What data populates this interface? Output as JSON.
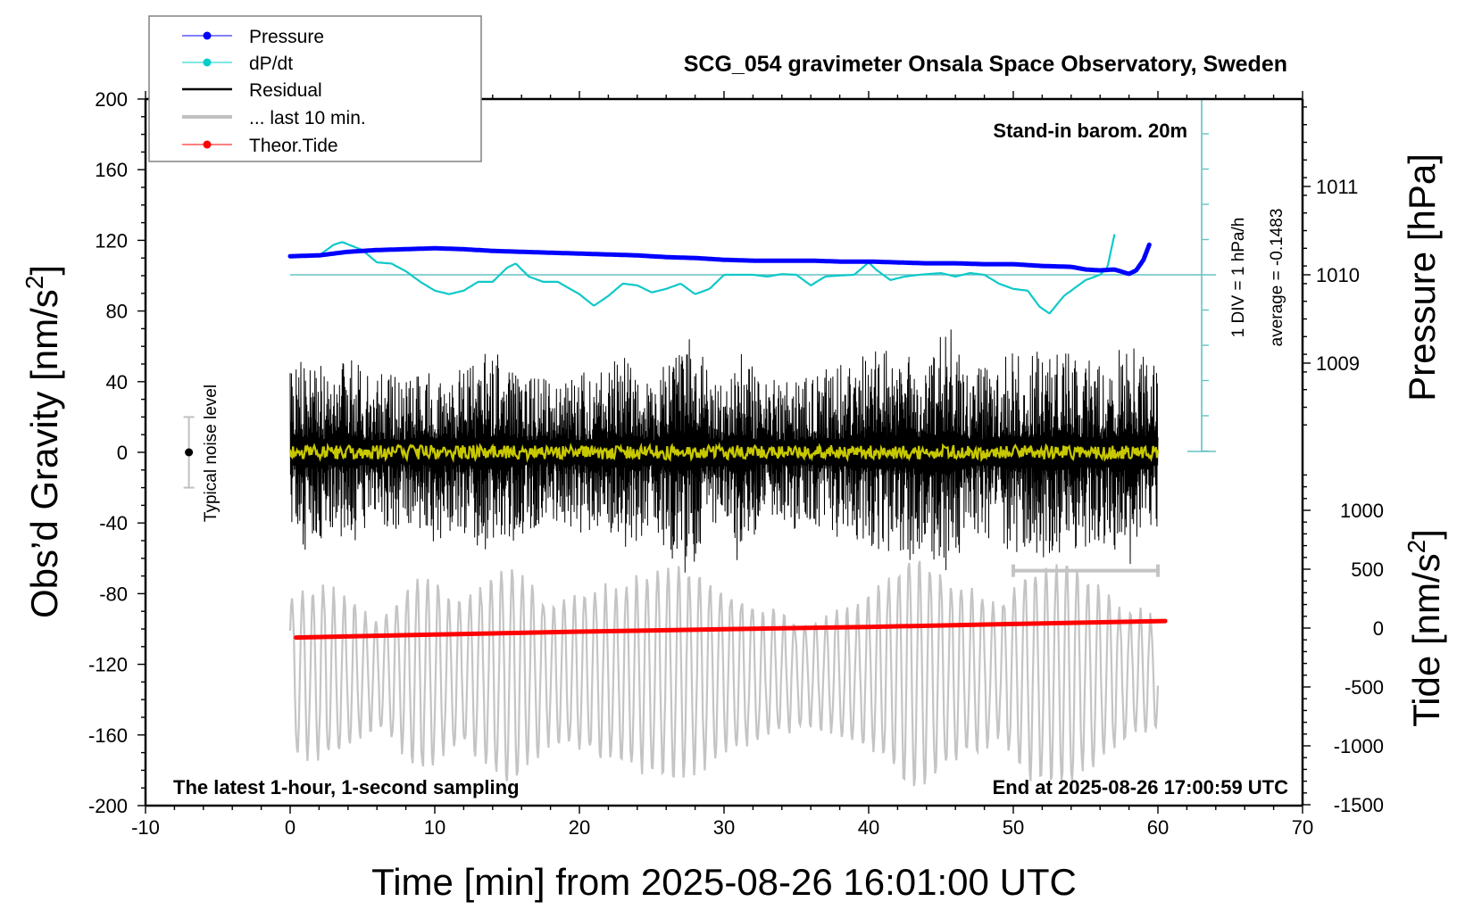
{
  "chart_data": {
    "type": "line",
    "title": "SCG_054 gravimeter Onsala Space Observatory, Sweden",
    "xlabel": "Time [min] from 2025-08-26 16:01:00 UTC",
    "ylabel_left": "Obs’d Gravity [nm/s",
    "ylabel_left_sup": "2",
    "ylabel_left_end": "]",
    "ylabel_right_top": "Pressure [hPa]",
    "ylabel_right_bottom": "Tide [nm/s",
    "ylabel_right_bottom_sup": "2",
    "ylabel_right_bottom_end": "]",
    "xlim": [
      -10,
      70
    ],
    "ylim": [
      -200,
      200
    ],
    "pressure_lim": [
      1008,
      1012
    ],
    "tide_lim": [
      -1500,
      1500
    ],
    "x_ticks": [
      "-10",
      "0",
      "10",
      "20",
      "30",
      "40",
      "50",
      "60",
      "70"
    ],
    "y_ticks": [
      "200",
      "160",
      "120",
      "80",
      "40",
      "0",
      "-40",
      "-80",
      "-120",
      "-160",
      "-200"
    ],
    "pressure_ticks": [
      "1011",
      "1010",
      "1009"
    ],
    "tide_ticks": [
      "1000",
      "500",
      "0",
      "-500",
      "-1000",
      "-1500"
    ],
    "annotations": {
      "barometer": "Stand-in barom. 20m",
      "div": "1 DIV = 1 hPa/h",
      "average": "average = -0.1483",
      "noise": "Typical noise level",
      "latest": "The latest 1-hour, 1-second sampling",
      "end": "End at 2025-08-26 17:00:59 UTC"
    },
    "legend": {
      "position": "top-left",
      "entries": [
        {
          "label": "Pressure",
          "color": "#0000ff",
          "marker": true
        },
        {
          "label": "dP/dt",
          "color": "#00cccc",
          "marker": true
        },
        {
          "label": "Residual",
          "color": "#000000",
          "marker": false
        },
        {
          "label": "... last 10 min.",
          "color": "#c0c0c0",
          "marker": false
        },
        {
          "label": "Theor.Tide",
          "color": "#ff0000",
          "marker": true
        }
      ]
    },
    "colors": {
      "pressure": "#0000ff",
      "dpdt": "#10c8c8",
      "dpdt_axis": "#66c2c2",
      "residual": "#000000",
      "residual_smooth": "#c8c800",
      "last10": "#c4c4c4",
      "tide": "#ff0000",
      "noise_bar": "#c0c0c0"
    },
    "series": [
      {
        "name": "Pressure",
        "unit": "hPa",
        "x": [
          0,
          2,
          4,
          6,
          8,
          10,
          12,
          14,
          16,
          18,
          20,
          22,
          24,
          26,
          28,
          30,
          32,
          34,
          36,
          38,
          40,
          42,
          44,
          46,
          48,
          50,
          52,
          54,
          55,
          56,
          57,
          58,
          58.5,
          59,
          59.4
        ],
        "y": [
          1010.21,
          1010.22,
          1010.26,
          1010.28,
          1010.29,
          1010.3,
          1010.29,
          1010.27,
          1010.26,
          1010.25,
          1010.24,
          1010.23,
          1010.22,
          1010.2,
          1010.19,
          1010.17,
          1010.16,
          1010.16,
          1010.16,
          1010.15,
          1010.15,
          1010.14,
          1010.13,
          1010.13,
          1010.12,
          1010.12,
          1010.1,
          1010.09,
          1010.06,
          1010.05,
          1010.06,
          1010.01,
          1010.05,
          1010.17,
          1010.34
        ]
      },
      {
        "name": "dP/dt",
        "unit": "hPa/h (DIV)",
        "baseline_hPa": 1010,
        "x": [
          2,
          3,
          3.6,
          5,
          6,
          7,
          8,
          9,
          10,
          11,
          12,
          13,
          14,
          15,
          15.6,
          16.5,
          17.5,
          18.5,
          20,
          21,
          22,
          23,
          24,
          25,
          26,
          27,
          28,
          29,
          30,
          31,
          32,
          33,
          34,
          35,
          36,
          37,
          38,
          39,
          40,
          40.5,
          41.5,
          42.5,
          43.5,
          45,
          46,
          47,
          48,
          49,
          50,
          51,
          51.8,
          52.5,
          53.5,
          55,
          56,
          56.5,
          57
        ],
        "y": [
          0.55,
          0.85,
          0.93,
          0.7,
          0.35,
          0.32,
          0.1,
          -0.2,
          -0.45,
          -0.55,
          -0.45,
          -0.2,
          -0.2,
          0.2,
          0.32,
          -0.05,
          -0.2,
          -0.2,
          -0.55,
          -0.88,
          -0.6,
          -0.25,
          -0.3,
          -0.5,
          -0.4,
          -0.25,
          -0.55,
          -0.4,
          0.0,
          0.0,
          0.0,
          -0.05,
          0.02,
          0.0,
          -0.3,
          -0.05,
          -0.02,
          0.0,
          0.35,
          0.15,
          -0.15,
          -0.05,
          0.0,
          0.05,
          -0.05,
          0.05,
          0.0,
          -0.25,
          -0.4,
          -0.45,
          -0.9,
          -1.1,
          -0.6,
          -0.15,
          0.0,
          0.2,
          1.15
        ]
      },
      {
        "name": "Theor.Tide",
        "unit": "nm/s2",
        "x": [
          0.4,
          10,
          20,
          30,
          40,
          50,
          60.5
        ],
        "y": [
          -80,
          -55,
          -30,
          -10,
          10,
          35,
          60
        ]
      },
      {
        "name": "Residual",
        "unit": "nm/s2",
        "note": "1-second samples; envelope amplitude per minute",
        "x_start": 0,
        "x_end": 60,
        "seed": 54,
        "envelope_minutes": [
          0,
          1,
          2,
          3,
          4,
          5,
          6,
          7,
          8,
          9,
          10,
          11,
          12,
          13,
          14,
          15,
          16,
          17,
          18,
          19,
          20,
          21,
          22,
          23,
          24,
          25,
          26,
          27,
          28,
          29,
          30,
          31,
          32,
          33,
          34,
          35,
          36,
          37,
          38,
          39,
          40,
          41,
          42,
          43,
          44,
          45,
          46,
          47,
          48,
          49,
          50,
          51,
          52,
          53,
          54,
          55,
          56,
          57,
          58,
          59,
          60
        ],
        "envelope_amplitude": [
          45,
          58,
          52,
          45,
          55,
          48,
          42,
          50,
          40,
          45,
          52,
          45,
          48,
          55,
          60,
          52,
          48,
          44,
          40,
          42,
          46,
          44,
          50,
          58,
          50,
          42,
          56,
          72,
          64,
          50,
          42,
          70,
          48,
          40,
          44,
          46,
          44,
          48,
          50,
          52,
          56,
          60,
          55,
          62,
          48,
          74,
          70,
          50,
          48,
          52,
          62,
          54,
          60,
          58,
          62,
          54,
          50,
          56,
          64,
          62,
          46
        ],
        "smooth_amplitude": 4
      },
      {
        "name": "... last 10 min.",
        "unit": "nm/s2 (stretched over 0–60 min, offset -125)",
        "offset": -125,
        "x_start": 0,
        "x_end": 60,
        "seed": 10,
        "envelope_minutes": [
          0,
          3,
          6,
          9,
          12,
          15,
          18,
          21,
          24,
          27,
          30,
          33,
          36,
          40,
          43,
          46,
          49,
          51,
          54,
          57,
          60
        ],
        "envelope_amplitude": [
          45,
          48,
          30,
          55,
          40,
          62,
          38,
          45,
          55,
          60,
          45,
          35,
          28,
          42,
          65,
          50,
          38,
          58,
          62,
          40,
          30
        ]
      }
    ],
    "noise_bar": {
      "x": -7,
      "center": 0,
      "low": -20,
      "high": 20
    },
    "last10_bracket": {
      "x_from": 50,
      "x_to": 60,
      "y": -67
    }
  }
}
